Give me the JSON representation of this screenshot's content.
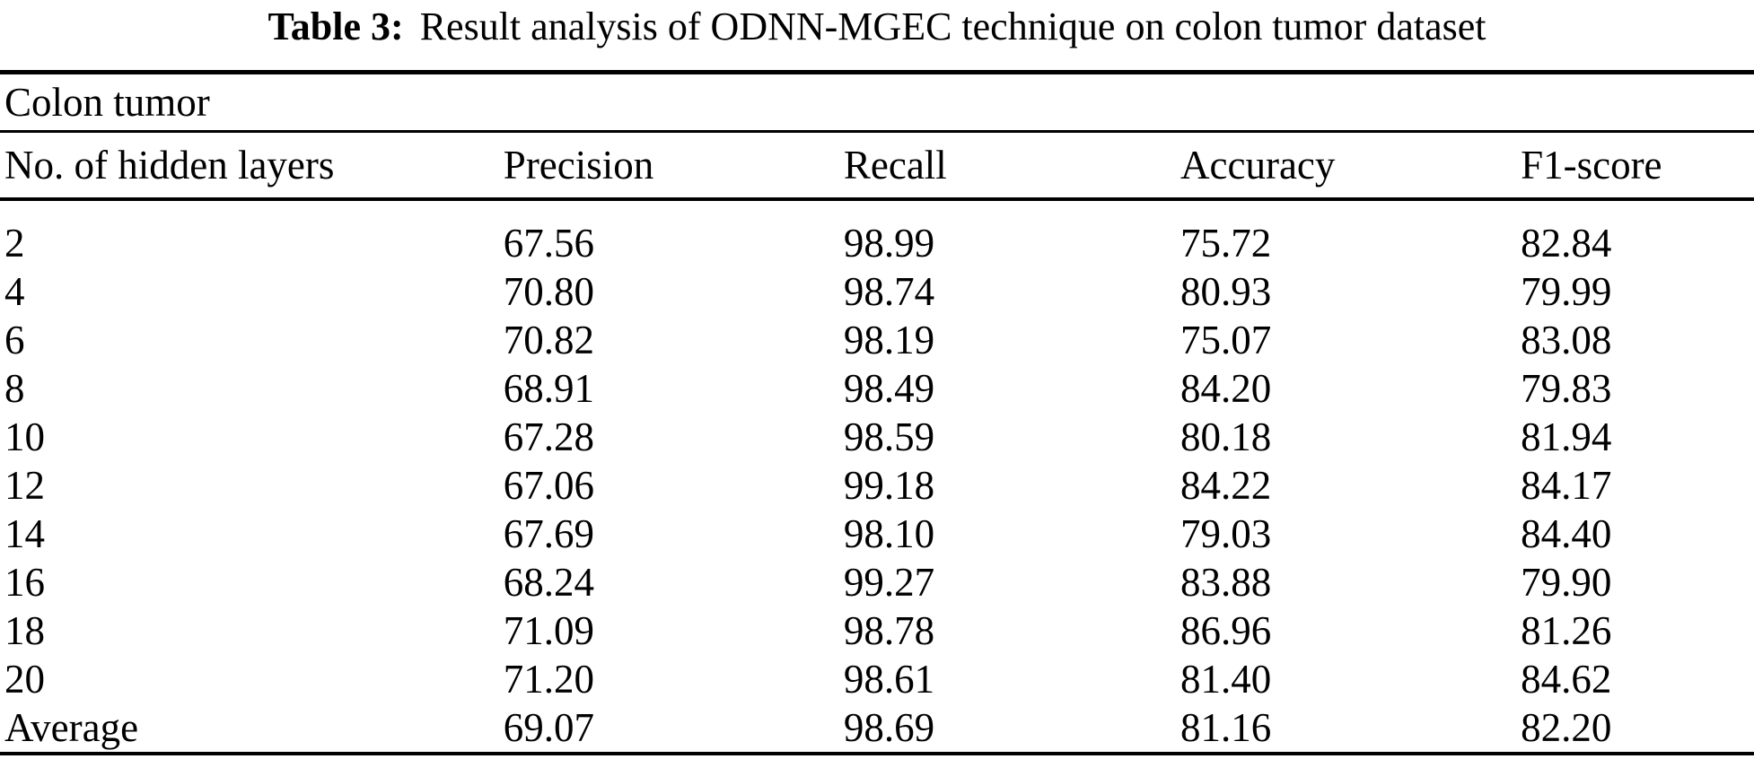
{
  "caption": {
    "label": "Table 3:",
    "text": "Result analysis of ODNN-MGEC technique on colon tumor dataset"
  },
  "table": {
    "group_header": "Colon tumor",
    "columns": [
      "No. of hidden layers",
      "Precision",
      "Recall",
      "Accuracy",
      "F1-score"
    ],
    "rows": [
      [
        "2",
        "67.56",
        "98.99",
        "75.72",
        "82.84"
      ],
      [
        "4",
        "70.80",
        "98.74",
        "80.93",
        "79.99"
      ],
      [
        "6",
        "70.82",
        "98.19",
        "75.07",
        "83.08"
      ],
      [
        "8",
        "68.91",
        "98.49",
        "84.20",
        "79.83"
      ],
      [
        "10",
        "67.28",
        "98.59",
        "80.18",
        "81.94"
      ],
      [
        "12",
        "67.06",
        "99.18",
        "84.22",
        "84.17"
      ],
      [
        "14",
        "67.69",
        "98.10",
        "79.03",
        "84.40"
      ],
      [
        "16",
        "68.24",
        "99.27",
        "83.88",
        "79.90"
      ],
      [
        "18",
        "71.09",
        "98.78",
        "86.96",
        "81.26"
      ],
      [
        "20",
        "71.20",
        "98.61",
        "81.40",
        "84.62"
      ],
      [
        "Average",
        "69.07",
        "98.69",
        "81.16",
        "82.20"
      ]
    ],
    "colors": {
      "text": "#000000",
      "background": "#ffffff",
      "rule": "#000000"
    }
  }
}
